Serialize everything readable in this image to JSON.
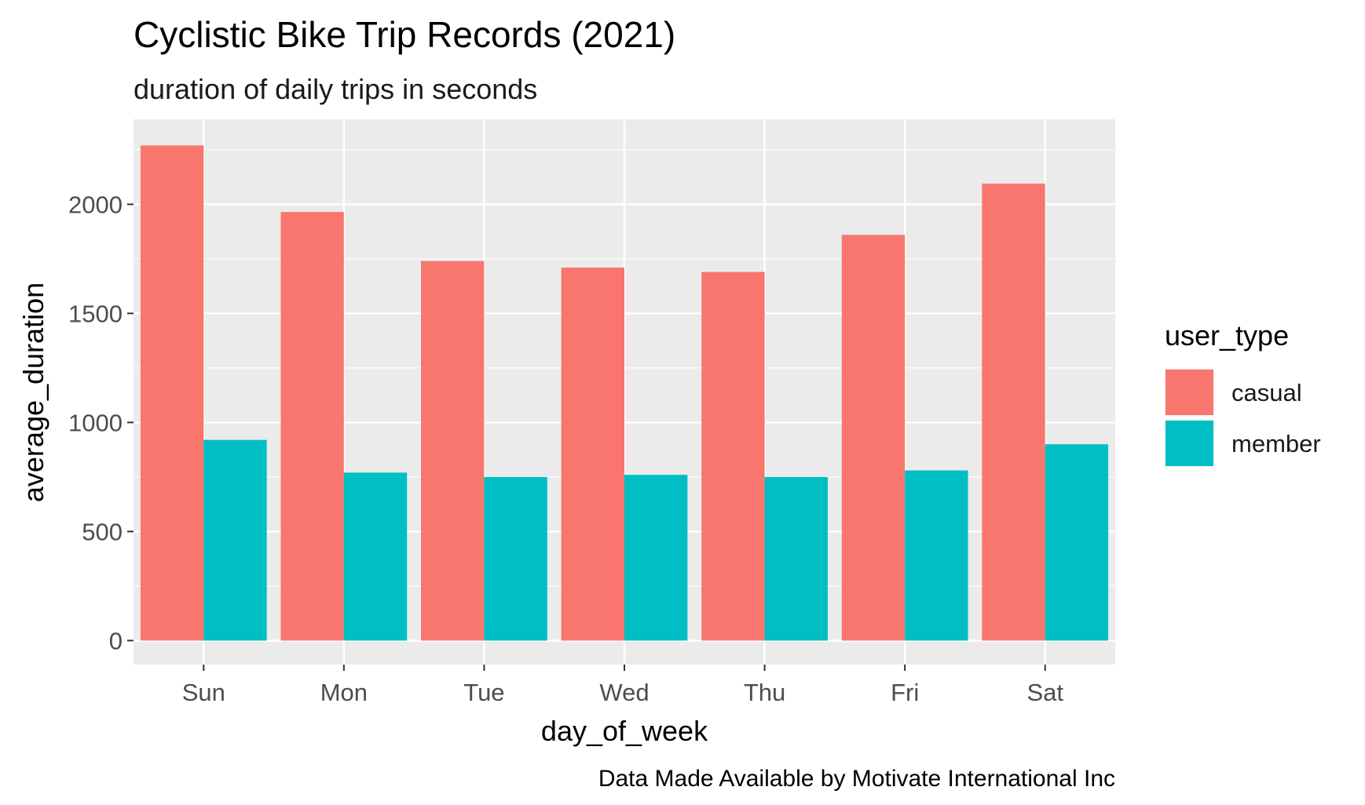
{
  "chart_data": {
    "type": "bar",
    "title": "Cyclistic Bike Trip Records (2021)",
    "subtitle": "duration of daily trips in seconds",
    "caption": "Data Made Available by Motivate International Inc",
    "xlabel": "day_of_week",
    "ylabel": "average_duration",
    "categories": [
      "Sun",
      "Mon",
      "Tue",
      "Wed",
      "Thu",
      "Fri",
      "Sat"
    ],
    "series": [
      {
        "name": "casual",
        "color": "#F8766D",
        "values": [
          2270,
          1965,
          1740,
          1710,
          1690,
          1860,
          2095
        ]
      },
      {
        "name": "member",
        "color": "#00BFC4",
        "values": [
          920,
          770,
          750,
          760,
          750,
          780,
          900
        ]
      }
    ],
    "ylim": [
      -110,
      2390
    ],
    "yticks": [
      0,
      500,
      1000,
      1500,
      2000
    ],
    "ytick_labels": [
      "0",
      "500",
      "1000",
      "1500",
      "2000"
    ],
    "grid": true,
    "legend": {
      "title": "user_type",
      "position": "right"
    },
    "colors": {
      "panel_bg": "#EBEBEB",
      "grid": "#FFFFFF",
      "tick": "#333333"
    }
  }
}
